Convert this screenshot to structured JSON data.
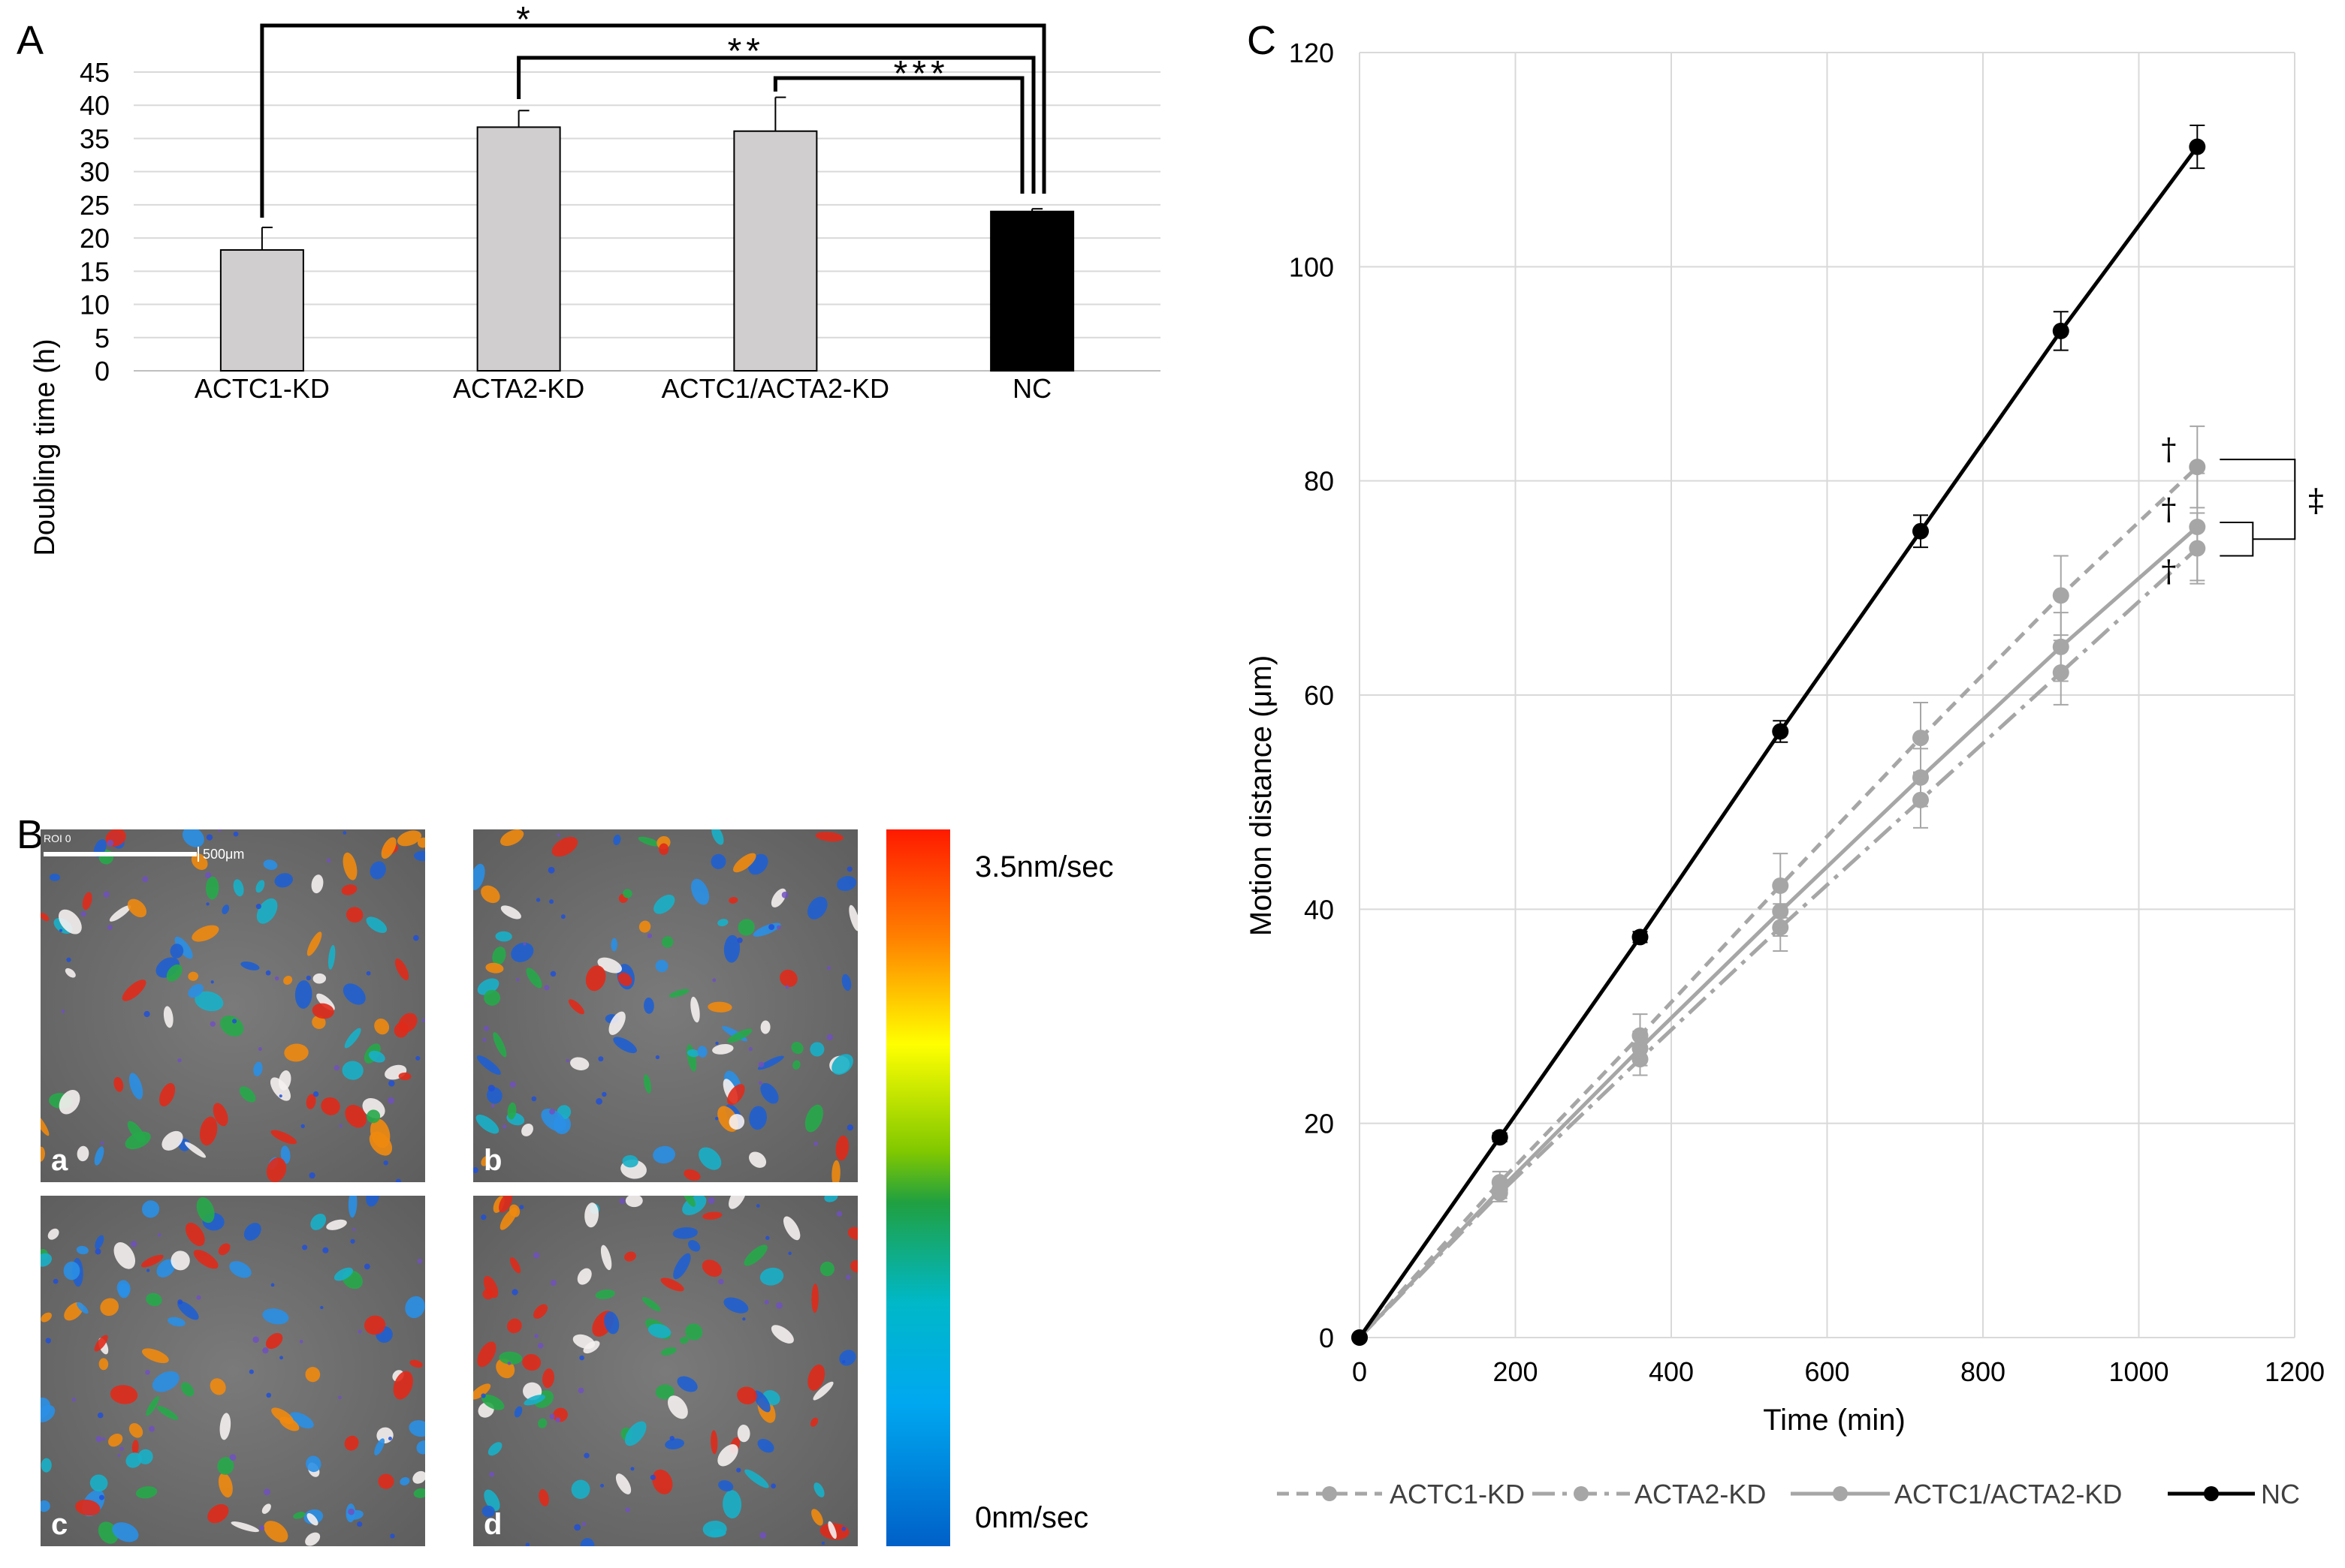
{
  "panel_labels": {
    "a": "A",
    "b": "B",
    "c": "C"
  },
  "chart_data": [
    {
      "type": "bar",
      "panel": "A",
      "title": "",
      "ylabel": "Doubling time (h)",
      "xlabel": "",
      "ylim": [
        0,
        45
      ],
      "yticks": [
        0,
        5,
        10,
        15,
        20,
        25,
        30,
        35,
        40,
        45
      ],
      "categories": [
        "ACTC1-KD",
        "ACTA2-KD",
        "ACTC1/ACTA2-KD",
        "NC"
      ],
      "values": [
        18.2,
        36.7,
        36.1,
        24.0
      ],
      "errors": [
        3.4,
        2.5,
        5.1,
        0.4
      ],
      "bar_colors": [
        "#d0cece",
        "#d0cece",
        "#d0cece",
        "#000000"
      ],
      "grid": true,
      "significance": [
        {
          "label": "*",
          "from": "ACTC1-KD",
          "to": "NC"
        },
        {
          "label": "**",
          "from": "ACTA2-KD",
          "to": "NC"
        },
        {
          "label": "***",
          "from": "ACTC1/ACTA2-KD",
          "to": "NC"
        }
      ]
    },
    {
      "type": "line",
      "panel": "C",
      "title": "",
      "xlabel": "Time (min)",
      "ylabel": "Motion distance (μm)",
      "xlim": [
        0,
        1200
      ],
      "ylim": [
        0,
        120
      ],
      "xticks": [
        0,
        200,
        400,
        600,
        800,
        1000,
        1200
      ],
      "yticks": [
        0,
        20,
        40,
        60,
        80,
        100,
        120
      ],
      "x": [
        0,
        180,
        360,
        540,
        720,
        900,
        1075
      ],
      "series": [
        {
          "name": "ACTC1-KD",
          "style": "dashed",
          "color": "#a6a6a6",
          "values": [
            0,
            14.5,
            28.2,
            42.2,
            56.0,
            69.3,
            81.3
          ],
          "errors": [
            0,
            1.0,
            2.0,
            3.0,
            3.3,
            3.7,
            3.8
          ]
        },
        {
          "name": "ACTA2-KD",
          "style": "dashdot",
          "color": "#a6a6a6",
          "values": [
            0,
            13.5,
            26.0,
            38.3,
            50.2,
            62.1,
            73.7
          ],
          "errors": [
            0,
            0.8,
            1.5,
            2.2,
            2.6,
            3.0,
            3.3
          ]
        },
        {
          "name": "ACTC1/ACTA2-KD",
          "style": "solid",
          "color": "#a6a6a6",
          "values": [
            0,
            13.8,
            27.0,
            39.8,
            52.3,
            64.5,
            75.7
          ],
          "errors": [
            0,
            0.8,
            1.6,
            2.3,
            2.7,
            3.2,
            5.0
          ]
        },
        {
          "name": "NC",
          "style": "solid",
          "color": "#000000",
          "values": [
            0,
            18.7,
            37.4,
            56.6,
            75.3,
            94.0,
            111.2
          ],
          "errors": [
            0,
            0.4,
            0.5,
            1.0,
            1.5,
            1.8,
            2.0
          ]
        }
      ],
      "annotations": [
        "†",
        "†",
        "†",
        "‡"
      ],
      "legend": "bottom",
      "grid": true
    }
  ],
  "panel_b": {
    "scale_bar_label": "500μm",
    "roi_label": "ROI 0",
    "sub_labels": [
      "a",
      "b",
      "c",
      "d"
    ],
    "colorbar_max": "3.5nm/sec",
    "colorbar_min": "0nm/sec"
  }
}
